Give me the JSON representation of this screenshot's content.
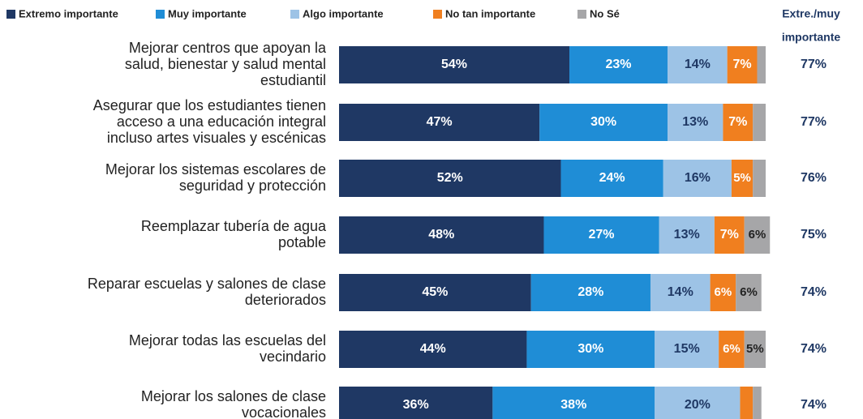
{
  "chart_data": {
    "type": "stacked-bar-horizontal",
    "categories": [
      [
        "Mejorar centros que apoyan la",
        "salud, bienestar y salud mental",
        "estudiantil"
      ],
      [
        "Asegurar que los estudiantes tienen",
        "acceso a una educación integral",
        "incluso artes visuales y escénicas"
      ],
      [
        "Mejorar los sistemas escolares de",
        "seguridad y protección"
      ],
      [
        "Reemplazar tubería de agua",
        "potable"
      ],
      [
        "Reparar escuelas y salones de clase",
        "deteriorados"
      ],
      [
        "Mejorar todas las escuelas del",
        "vecindario"
      ],
      [
        "Mejorar los salones de clase",
        "vocacionales"
      ]
    ],
    "series": [
      {
        "name": "Extremo importante",
        "color": "#1f3864",
        "values": [
          54,
          47,
          52,
          48,
          45,
          44,
          36
        ],
        "value_labels": [
          "54%",
          "47%",
          "52%",
          "48%",
          "45%",
          "44%",
          "36%"
        ]
      },
      {
        "name": "Muy importante",
        "color": "#1f8dd6",
        "values": [
          23,
          30,
          24,
          27,
          28,
          30,
          38
        ],
        "value_labels": [
          "23%",
          "30%",
          "24%",
          "27%",
          "28%",
          "30%",
          "38%"
        ]
      },
      {
        "name": "Algo importante",
        "color": "#9dc3e6",
        "values": [
          14,
          13,
          16,
          13,
          14,
          15,
          20
        ],
        "value_labels": [
          "14%",
          "13%",
          "16%",
          "13%",
          "14%",
          "15%",
          "20%"
        ]
      },
      {
        "name": "No tan importante",
        "color": "#f07f1f",
        "values": [
          7,
          7,
          5,
          7,
          6,
          6,
          3
        ],
        "value_labels": [
          "7%",
          "7%",
          "5%",
          "7%",
          "6%",
          "6%",
          null
        ]
      },
      {
        "name": "No Sé",
        "color": "#a6a6a8",
        "values": [
          2,
          3,
          3,
          6,
          6,
          5,
          2
        ],
        "value_labels": [
          null,
          null,
          null,
          "6%",
          "6%",
          "5%",
          null
        ]
      }
    ],
    "totals": {
      "label": [
        "Extre./muy",
        "importante"
      ],
      "values": [
        77,
        77,
        76,
        75,
        74,
        74,
        74
      ],
      "value_labels": [
        "77%",
        "77%",
        "76%",
        "75%",
        "74%",
        "74%",
        "74%"
      ]
    }
  }
}
